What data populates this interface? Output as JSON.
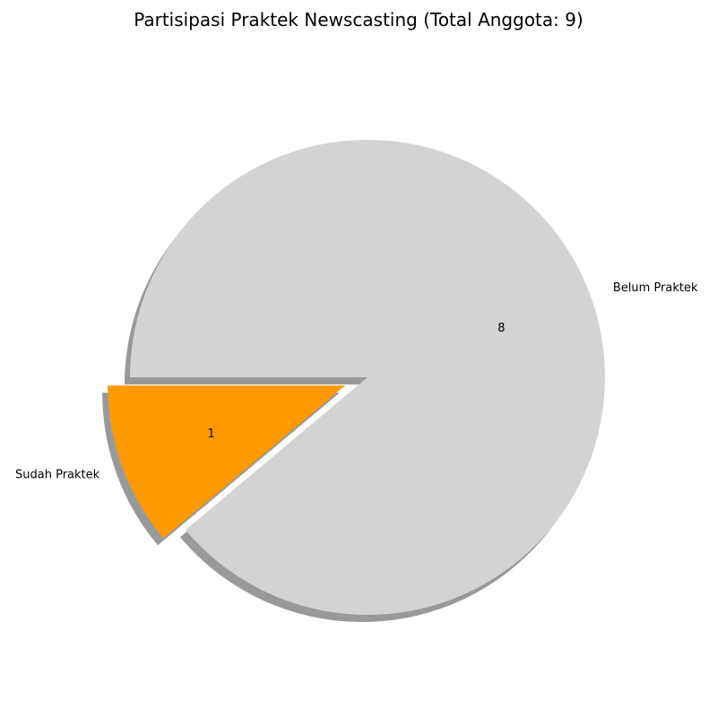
{
  "chart_data": {
    "type": "pie",
    "title": "Partisipasi Praktek Newscasting (Total Anggota: 9)",
    "slices": [
      {
        "label": "Sudah Praktek",
        "value": 1,
        "color": "#ff9900",
        "exploded": true
      },
      {
        "label": "Belum Praktek",
        "value": 8,
        "color": "#d3d3d3",
        "exploded": false
      }
    ],
    "start_angle_deg": 180,
    "shadow": true,
    "value_labels_shown": true
  }
}
